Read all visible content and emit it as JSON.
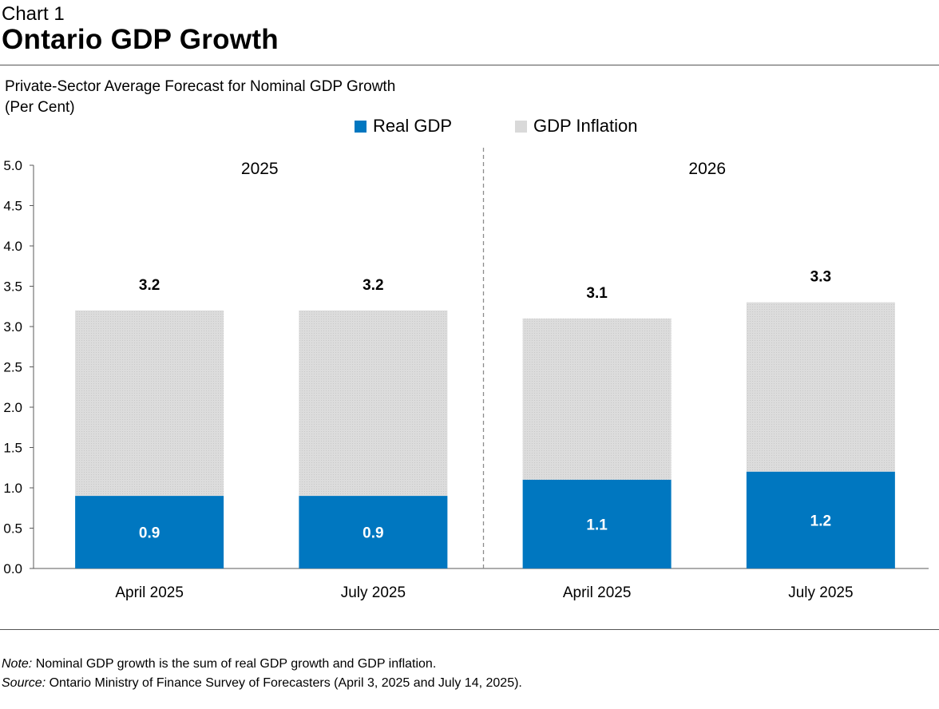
{
  "header": {
    "chart_number": "Chart 1",
    "title": "Ontario GDP Growth"
  },
  "subtitle": {
    "line1": "Private-Sector Average Forecast for Nominal GDP Growth",
    "line2": "(Per Cent)"
  },
  "legend": {
    "real_gdp": "Real GDP",
    "gdp_inflation": "GDP Inflation"
  },
  "colors": {
    "real_gdp": "#0077C0",
    "gdp_inflation": "#D9D9D9",
    "axis": "#595959",
    "divider": "#8C8C8C"
  },
  "footer": {
    "note_label": "Note:",
    "note_text": " Nominal GDP growth is the sum of real GDP growth and GDP inflation.",
    "source_label": "Source:",
    "source_text": " Ontario Ministry of Finance Survey of Forecasters (April 3, 2025 and July 14, 2025)."
  },
  "chart_data": {
    "type": "bar",
    "stacked": true,
    "title": "Ontario GDP Growth",
    "ylabel": "(Per Cent)",
    "ylim": [
      0,
      5
    ],
    "yticks": [
      "0.0",
      "0.5",
      "1.0",
      "1.5",
      "2.0",
      "2.5",
      "3.0",
      "3.5",
      "4.0",
      "4.5",
      "5.0"
    ],
    "groups": [
      "2025",
      "2026"
    ],
    "categories": [
      "April 2025",
      "July 2025",
      "April 2025",
      "July 2025"
    ],
    "category_group": [
      0,
      0,
      1,
      1
    ],
    "series": [
      {
        "name": "Real GDP",
        "values": [
          0.9,
          0.9,
          1.1,
          1.2
        ],
        "labels": [
          "0.9",
          "0.9",
          "1.1",
          "1.2"
        ]
      },
      {
        "name": "GDP Inflation",
        "values": [
          2.3,
          2.3,
          2.0,
          2.1
        ]
      }
    ],
    "totals": [
      3.2,
      3.2,
      3.1,
      3.3
    ],
    "total_labels": [
      "3.2",
      "3.2",
      "3.1",
      "3.3"
    ],
    "legend_position": "top-center"
  }
}
